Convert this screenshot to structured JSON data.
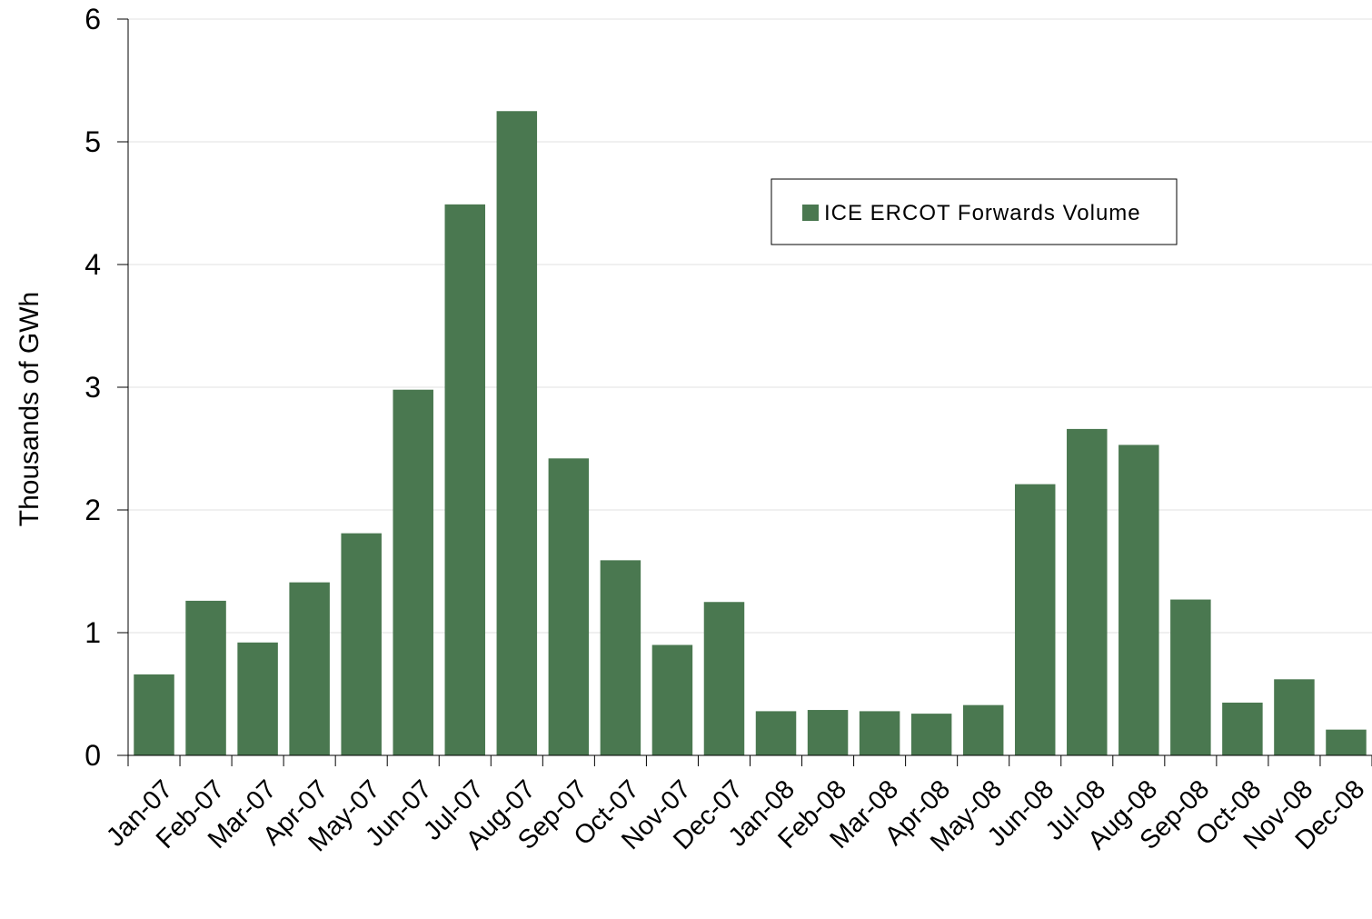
{
  "chart_data": {
    "type": "bar",
    "y_label": "Thousands of GWh",
    "categories": [
      "Jan-07",
      "Feb-07",
      "Mar-07",
      "Apr-07",
      "May-07",
      "Jun-07",
      "Jul-07",
      "Aug-07",
      "Sep-07",
      "Oct-07",
      "Nov-07",
      "Dec-07",
      "Jan-08",
      "Feb-08",
      "Mar-08",
      "Apr-08",
      "May-08",
      "Jun-08",
      "Jul-08",
      "Aug-08",
      "Sep-08",
      "Oct-08",
      "Nov-08",
      "Dec-08"
    ],
    "series": [
      {
        "name": "ICE ERCOT Forwards Volume",
        "color": "#4a7850",
        "values": [
          0.66,
          1.26,
          0.92,
          1.41,
          1.81,
          2.98,
          4.49,
          5.25,
          2.42,
          1.59,
          0.9,
          1.25,
          0.36,
          0.37,
          0.36,
          0.34,
          0.41,
          2.21,
          2.66,
          2.53,
          1.27,
          0.43,
          0.62,
          0.21
        ]
      }
    ],
    "ylim": [
      0,
      6
    ],
    "yticks": [
      0,
      1,
      2,
      3,
      4,
      5,
      6
    ],
    "grid": true,
    "legend": "upper-right"
  }
}
